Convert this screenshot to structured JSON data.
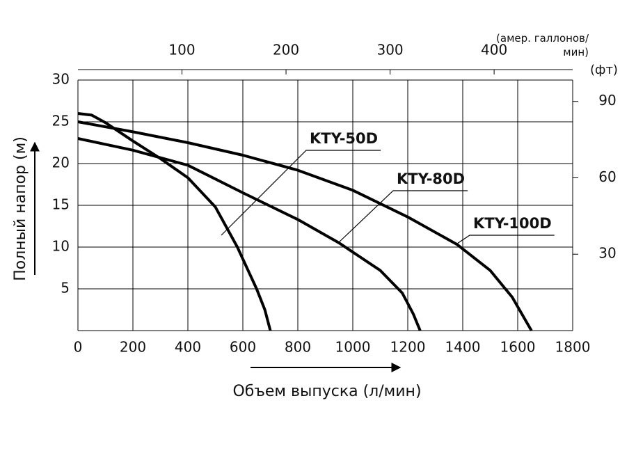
{
  "chart_data": {
    "type": "line",
    "xlabel": "Объем выпуска (л/мин)",
    "ylabel": "Полный напор (м)",
    "x2label": "(амер. галлонов/ мин)",
    "y2label": "(фт)",
    "xlim": [
      0,
      1800
    ],
    "xticks": [
      0,
      200,
      400,
      600,
      800,
      1000,
      1200,
      1400,
      1600,
      1800
    ],
    "ylim": [
      0,
      30
    ],
    "yticks": [
      5,
      10,
      15,
      20,
      25,
      30
    ],
    "x2lim": [
      0,
      475.5
    ],
    "x2ticks": [
      100,
      200,
      300,
      400
    ],
    "y2lim": [
      0,
      98.4
    ],
    "y2ticks": [
      30,
      60,
      90
    ],
    "grid": true,
    "series": [
      {
        "name": "KTY-50D",
        "color": "#000000",
        "x": [
          0,
          50,
          100,
          200,
          300,
          400,
          500,
          580,
          650,
          680,
          700
        ],
        "values": [
          26,
          25.8,
          24.9,
          22.7,
          20.6,
          18.3,
          14.8,
          10,
          5,
          2.5,
          0
        ]
      },
      {
        "name": "KTY-80D",
        "color": "#000000",
        "x": [
          0,
          200,
          400,
          600,
          800,
          950,
          1100,
          1180,
          1220,
          1245
        ],
        "values": [
          23,
          21.6,
          19.8,
          16.5,
          13.3,
          10.5,
          7.2,
          4.5,
          2,
          0
        ]
      },
      {
        "name": "KTY-100D",
        "color": "#000000",
        "x": [
          0,
          200,
          400,
          600,
          800,
          1000,
          1200,
          1380,
          1500,
          1580,
          1650
        ],
        "values": [
          25,
          23.8,
          22.5,
          21,
          19.2,
          16.8,
          13.6,
          10.3,
          7.2,
          4,
          0
        ]
      }
    ]
  }
}
